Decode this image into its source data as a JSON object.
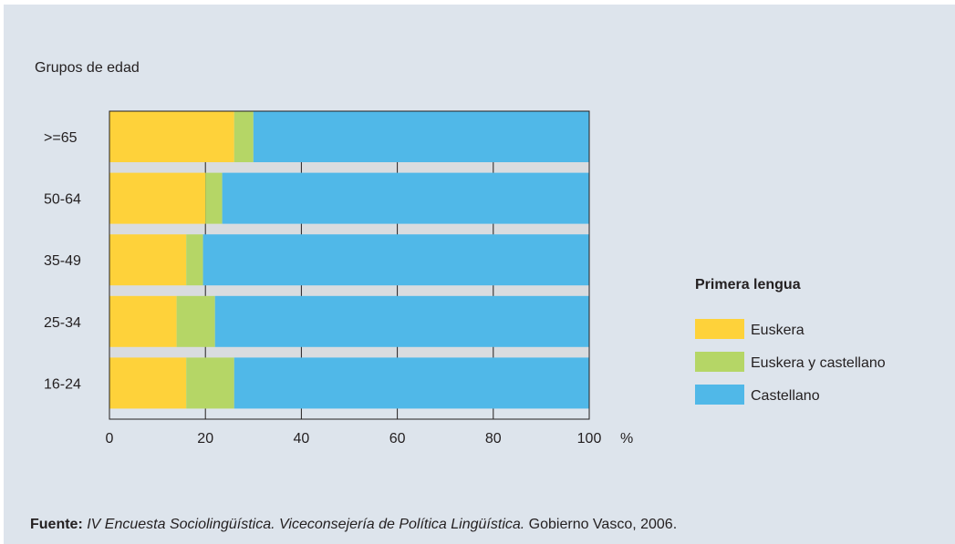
{
  "chart_data": {
    "type": "bar",
    "stacked": true,
    "orientation": "horizontal",
    "ylabel": "Grupos de edad",
    "x_unit": "%",
    "xlim": [
      0,
      100
    ],
    "x_ticks": [
      "0",
      "20",
      "40",
      "60",
      "80",
      "100"
    ],
    "categories": [
      ">=65",
      "50-64",
      "35-49",
      "25-34",
      "16-24"
    ],
    "series": [
      {
        "name": "Euskera",
        "values": [
          26,
          20,
          16,
          14,
          16
        ]
      },
      {
        "name": "Euskera y castellano",
        "values": [
          4,
          3.5,
          3.5,
          8,
          10
        ]
      },
      {
        "name": "Castellano",
        "values": [
          70,
          76.5,
          80.5,
          78,
          74
        ]
      }
    ],
    "legend_title": "Primera lengua",
    "legend_position": "right",
    "colors": {
      "Euskera": "#fed23a",
      "Euskera y castellano": "#b5d666",
      "Castellano": "#50b8e8",
      "background": "#dde4ec",
      "gap": "#d9dcdf"
    }
  },
  "source": {
    "label": "Fuente:",
    "title": "IV Encuesta Sociolingüística. Viceconsejería de Política Lingüística.",
    "rest": " Gobierno Vasco, 2006."
  }
}
